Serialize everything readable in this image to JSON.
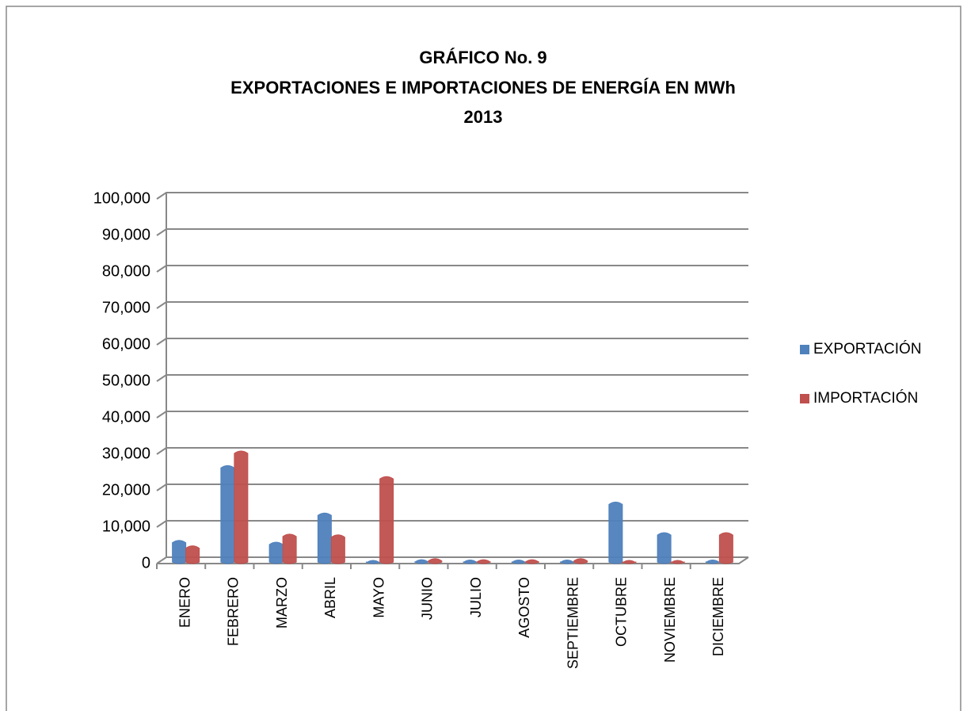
{
  "chart_data": {
    "type": "bar",
    "title": [
      "GRÁFICO No. 9",
      "EXPORTACIONES E IMPORTACIONES DE ENERGÍA EN MWh",
      "2013"
    ],
    "categories": [
      "ENERO",
      "FEBRERO",
      "MARZO",
      "ABRIL",
      "MAYO",
      "JUNIO",
      "JULIO",
      "AGOSTO",
      "SEPTIEMBRE",
      "OCTUBRE",
      "NOVIEMBRE",
      "DICIEMBRE"
    ],
    "series": [
      {
        "name": "EXPORTACIÓN",
        "color": "#4f81bd",
        "values": [
          5500,
          26000,
          5000,
          13000,
          0,
          200,
          100,
          100,
          100,
          16000,
          7600,
          100
        ]
      },
      {
        "name": "IMPORTACIÓN",
        "color": "#c0504d",
        "values": [
          4000,
          30000,
          7200,
          7000,
          23000,
          500,
          200,
          200,
          500,
          0,
          0,
          7600
        ]
      }
    ],
    "ylim": [
      0,
      100000
    ],
    "yticks": [
      0,
      {
        "value": 10000,
        "label": "10,000"
      },
      {
        "value": 20000,
        "label": "20,000"
      },
      {
        "value": 30000,
        "label": "30,000"
      },
      {
        "value": 40000,
        "label": "40,000"
      },
      {
        "value": 50000,
        "label": "50,000"
      },
      {
        "value": 60000,
        "label": "60,000"
      },
      {
        "value": 70000,
        "label": "70,000"
      },
      {
        "value": 80000,
        "label": "80,000"
      },
      {
        "value": 90000,
        "label": "90,000"
      },
      {
        "value": 100000,
        "label": "100,000"
      }
    ],
    "grid": true,
    "legend": "right"
  }
}
